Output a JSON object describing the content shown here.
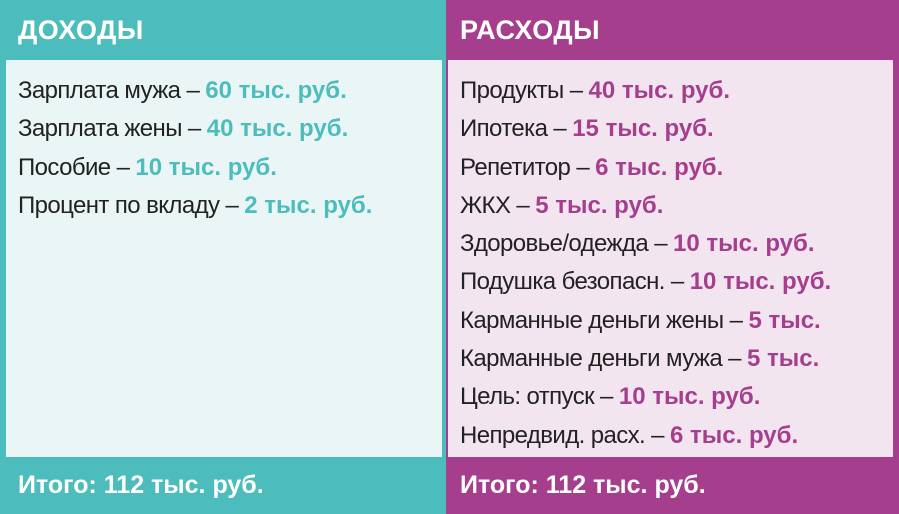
{
  "colors": {
    "income": "#4dbcbc",
    "expense": "#a53f8d"
  },
  "income": {
    "title": "ДОХОДЫ",
    "items": [
      {
        "label": "Зарплата мужа – ",
        "value": "60 тыс. руб."
      },
      {
        "label": "Зарплата жены – ",
        "value": "40 тыс. руб."
      },
      {
        "label": "Пособие – ",
        "value": "10 тыс. руб."
      },
      {
        "label": "Процент по вкладу – ",
        "value": "2 тыс. руб."
      }
    ],
    "total": "Итого: 112 тыс. руб."
  },
  "expense": {
    "title": "РАСХОДЫ",
    "items": [
      {
        "label": "Продукты – ",
        "value": "40 тыс. руб."
      },
      {
        "label": "Ипотека – ",
        "value": "15 тыс. руб."
      },
      {
        "label": "Репетитор – ",
        "value": "6 тыс. руб."
      },
      {
        "label": "ЖКХ – ",
        "value": "5 тыс. руб."
      },
      {
        "label": "Здоровье/одежда – ",
        "value": "10 тыс. руб."
      },
      {
        "label": "Подушка безопасн. – ",
        "value": "10 тыс. руб."
      },
      {
        "label": "Карманные деньги жены – ",
        "value": "5 тыс."
      },
      {
        "label": "Карманные деньги мужа – ",
        "value": "5 тыс."
      },
      {
        "label": "Цель: отпуск – ",
        "value": "10 тыс. руб."
      },
      {
        "label": "Непредвид. расх. – ",
        "value": "6 тыс. руб."
      }
    ],
    "total": "Итого: 112 тыс. руб."
  }
}
